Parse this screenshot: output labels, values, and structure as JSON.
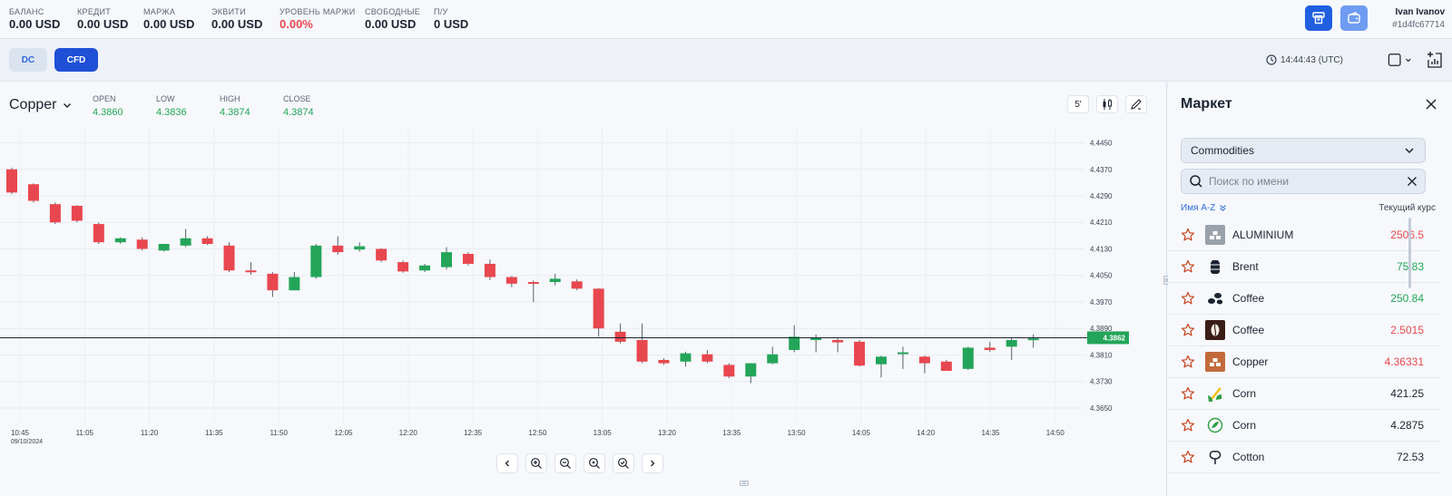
{
  "account": {
    "stats": [
      {
        "label": "БАЛАНС",
        "value": "0.00 USD",
        "negative": false
      },
      {
        "label": "КРЕДИТ",
        "value": "0.00 USD",
        "negative": false
      },
      {
        "label": "МАРЖА",
        "value": "0.00 USD",
        "negative": false
      },
      {
        "label": "ЭКВИТИ",
        "value": "0.00 USD",
        "negative": false
      },
      {
        "label": "УРОВЕНЬ МАРЖИ",
        "value": "0.00%",
        "negative": true
      },
      {
        "label": "СВОБОДНЫЕ",
        "value": "0.00 USD",
        "negative": false
      },
      {
        "label": "П/У",
        "value": "0 USD",
        "negative": false
      }
    ],
    "user_name": "Ivan Ivanov",
    "user_id": "#1d4fc67714"
  },
  "toolbar": {
    "tab_dc": "DC",
    "tab_cfd": "CFD",
    "clock": "14:44:43 (UTC)"
  },
  "instrument": {
    "symbol": "Copper",
    "open_label": "OPEN",
    "open": "4.3860",
    "low_label": "LOW",
    "low": "4.3836",
    "high_label": "HIGH",
    "high": "4.3874",
    "close_label": "CLOSE",
    "close": "4.3874",
    "timeframe": "5'"
  },
  "chart_data": {
    "type": "candlestick",
    "y_ticks": [
      "4.4450",
      "4.4370",
      "4.4290",
      "4.4210",
      "4.4130",
      "4.4050",
      "4.3970",
      "4.3890",
      "4.3810",
      "4.3730",
      "4.3650"
    ],
    "ylim": [
      4.3628,
      4.4476
    ],
    "x_ticks": [
      "10:45",
      "11:05",
      "11:20",
      "11:35",
      "11:50",
      "12:05",
      "12:20",
      "12:35",
      "12:50",
      "13:05",
      "13:20",
      "13:35",
      "13:50",
      "14:05",
      "14:20",
      "14:35",
      "14:50"
    ],
    "x_subtick": "09/10/2024",
    "current_price": 4.3862,
    "current_price_label": "4.3862",
    "candles": [
      [
        4.437,
        4.4375,
        4.4295,
        4.43
      ],
      [
        4.4325,
        4.4328,
        4.427,
        4.4275
      ],
      [
        4.4265,
        4.427,
        4.4205,
        4.421
      ],
      [
        4.426,
        4.4262,
        4.421,
        4.4215
      ],
      [
        4.4205,
        4.421,
        4.4145,
        4.415
      ],
      [
        4.415,
        4.4165,
        4.4145,
        4.4162
      ],
      [
        4.4158,
        4.4165,
        4.4125,
        4.413
      ],
      [
        4.4125,
        4.4145,
        4.4122,
        4.4145
      ],
      [
        4.414,
        4.419,
        4.4135,
        4.4162
      ],
      [
        4.4162,
        4.4168,
        4.4142,
        4.4145
      ],
      [
        4.414,
        4.415,
        4.406,
        4.4065
      ],
      [
        4.4065,
        4.409,
        4.4052,
        4.406
      ],
      [
        4.4055,
        4.406,
        4.3985,
        4.4005
      ],
      [
        4.4005,
        4.406,
        4.4005,
        4.4045
      ],
      [
        4.4045,
        4.4145,
        4.404,
        4.414
      ],
      [
        4.414,
        4.4168,
        4.4112,
        4.412
      ],
      [
        4.4128,
        4.415,
        4.4122,
        4.4138
      ],
      [
        4.413,
        4.4132,
        4.409,
        4.4095
      ],
      [
        4.409,
        4.4095,
        4.4058,
        4.4062
      ],
      [
        4.4065,
        4.4085,
        4.406,
        4.408
      ],
      [
        4.4075,
        4.4135,
        4.4068,
        4.412
      ],
      [
        4.4115,
        4.412,
        4.408,
        4.4085
      ],
      [
        4.4085,
        4.4098,
        4.4036,
        4.4045
      ],
      [
        4.4045,
        4.4048,
        4.4015,
        4.4025
      ],
      [
        4.403,
        4.4035,
        4.397,
        4.4028
      ],
      [
        4.403,
        4.4055,
        4.402,
        4.404
      ],
      [
        4.4032,
        4.4038,
        4.4005,
        4.401
      ],
      [
        4.401,
        4.4012,
        4.3865,
        4.389
      ],
      [
        4.388,
        4.3905,
        4.3845,
        4.385
      ],
      [
        4.3855,
        4.3905,
        4.3785,
        4.379
      ],
      [
        4.3795,
        4.38,
        4.378,
        4.3785
      ],
      [
        4.379,
        4.382,
        4.3775,
        4.3815
      ],
      [
        4.3812,
        4.3825,
        4.3785,
        4.379
      ],
      [
        4.378,
        4.3785,
        4.374,
        4.3745
      ],
      [
        4.3745,
        4.3785,
        4.3725,
        4.3785
      ],
      [
        4.3785,
        4.3835,
        4.3782,
        4.3812
      ],
      [
        4.3825,
        4.39,
        4.3818,
        4.3865
      ],
      [
        4.3855,
        4.3872,
        4.3818,
        4.3862
      ],
      [
        4.3855,
        4.3862,
        4.3818,
        4.3848
      ],
      [
        4.385,
        4.3855,
        4.3775,
        4.3778
      ],
      [
        4.3782,
        4.3808,
        4.3742,
        4.3805
      ],
      [
        4.3815,
        4.3835,
        4.3768,
        4.3818
      ],
      [
        4.3805,
        4.3808,
        4.3755,
        4.3785
      ],
      [
        4.379,
        4.3795,
        4.3765,
        4.3762
      ],
      [
        4.3768,
        4.3835,
        4.3765,
        4.3832
      ],
      [
        4.3832,
        4.385,
        4.382,
        4.3825
      ],
      [
        4.3835,
        4.3862,
        4.3795,
        4.3855
      ],
      [
        4.3855,
        4.3872,
        4.3832,
        4.386
      ]
    ]
  },
  "market": {
    "title": "Маркет",
    "category": "Commodities",
    "search_placeholder": "Поиск по имени",
    "sort_label": "Имя A-Z",
    "rate_label": "Текущий курс",
    "items": [
      {
        "name": "ALUMINIUM",
        "price": "2506.5",
        "trend": "red",
        "icon": "aluminium-icon"
      },
      {
        "name": "Brent",
        "price": "75.83",
        "trend": "green",
        "icon": "oil-barrel-icon"
      },
      {
        "name": "Coffee",
        "price": "250.84",
        "trend": "green",
        "icon": "coffee-beans-icon"
      },
      {
        "name": "Coffee",
        "price": "2.5015",
        "trend": "red",
        "icon": "coffee-bean-icon"
      },
      {
        "name": "Copper",
        "price": "4.36331",
        "trend": "red",
        "icon": "copper-icon"
      },
      {
        "name": "Corn",
        "price": "421.25",
        "trend": "neutral",
        "icon": "corn-icon"
      },
      {
        "name": "Corn",
        "price": "4.2875",
        "trend": "neutral",
        "icon": "corn-leaf-icon"
      },
      {
        "name": "Cotton",
        "price": "72.53",
        "trend": "neutral",
        "icon": "cotton-icon"
      }
    ]
  },
  "colors": {
    "up": "#23a559",
    "down": "#e8474f",
    "accent": "#1f4fd6"
  }
}
